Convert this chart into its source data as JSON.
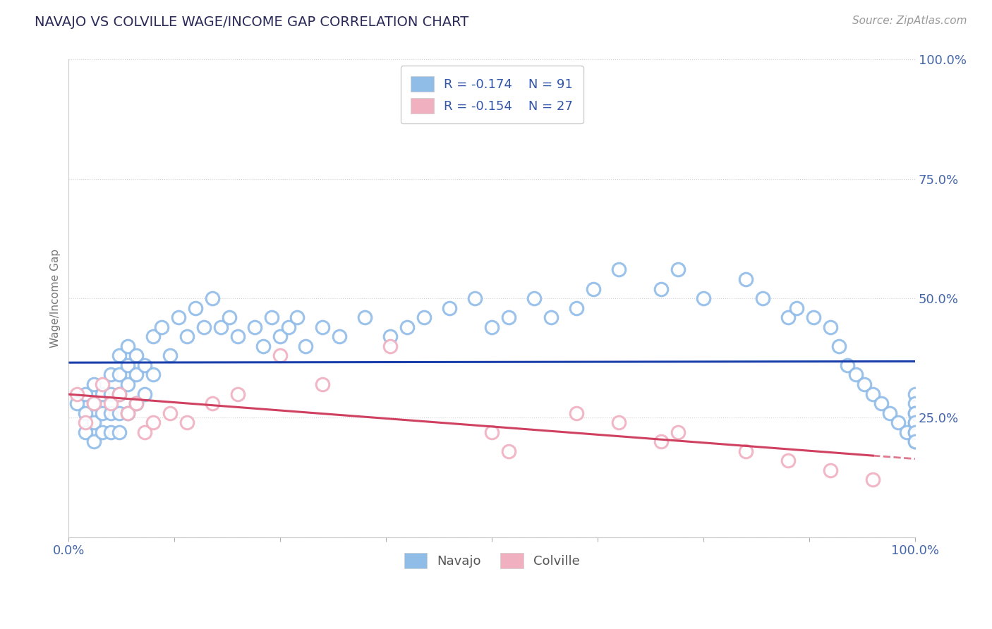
{
  "title": "NAVAJO VS COLVILLE WAGE/INCOME GAP CORRELATION CHART",
  "source": "Source: ZipAtlas.com",
  "ylabel": "Wage/Income Gap",
  "navajo_R": -0.174,
  "navajo_N": 91,
  "colville_R": -0.154,
  "colville_N": 27,
  "navajo_color": "#90bce8",
  "navajo_edge_color": "#7aaad8",
  "colville_color": "#f0b0c0",
  "colville_edge_color": "#e090a8",
  "navajo_line_color": "#1a3faa",
  "colville_line_color": "#d04060",
  "background_color": "#ffffff",
  "title_color": "#2a2a5a",
  "source_color": "#999999",
  "navajo_x": [
    0.01,
    0.02,
    0.02,
    0.02,
    0.03,
    0.03,
    0.03,
    0.03,
    0.04,
    0.04,
    0.04,
    0.05,
    0.05,
    0.05,
    0.05,
    0.06,
    0.06,
    0.06,
    0.06,
    0.06,
    0.07,
    0.07,
    0.07,
    0.07,
    0.08,
    0.08,
    0.08,
    0.09,
    0.09,
    0.1,
    0.1,
    0.11,
    0.12,
    0.13,
    0.14,
    0.15,
    0.16,
    0.17,
    0.18,
    0.19,
    0.2,
    0.22,
    0.23,
    0.24,
    0.25,
    0.26,
    0.27,
    0.28,
    0.3,
    0.32,
    0.35,
    0.38,
    0.4,
    0.42,
    0.45,
    0.48,
    0.5,
    0.52,
    0.55,
    0.57,
    0.6,
    0.62,
    0.65,
    0.7,
    0.72,
    0.75,
    0.8,
    0.82,
    0.85,
    0.86,
    0.88,
    0.9,
    0.91,
    0.92,
    0.93,
    0.94,
    0.95,
    0.96,
    0.97,
    0.98,
    0.99,
    1.0,
    1.0,
    1.0,
    1.0,
    1.0,
    1.0,
    1.0,
    1.0,
    1.0,
    1.0
  ],
  "navajo_y": [
    0.28,
    0.3,
    0.26,
    0.22,
    0.32,
    0.28,
    0.24,
    0.2,
    0.3,
    0.26,
    0.22,
    0.34,
    0.3,
    0.26,
    0.22,
    0.38,
    0.34,
    0.3,
    0.26,
    0.22,
    0.4,
    0.36,
    0.32,
    0.26,
    0.38,
    0.34,
    0.28,
    0.36,
    0.3,
    0.42,
    0.34,
    0.44,
    0.38,
    0.46,
    0.42,
    0.48,
    0.44,
    0.5,
    0.44,
    0.46,
    0.42,
    0.44,
    0.4,
    0.46,
    0.42,
    0.44,
    0.46,
    0.4,
    0.44,
    0.42,
    0.46,
    0.42,
    0.44,
    0.46,
    0.48,
    0.5,
    0.44,
    0.46,
    0.5,
    0.46,
    0.48,
    0.52,
    0.56,
    0.52,
    0.56,
    0.5,
    0.54,
    0.5,
    0.46,
    0.48,
    0.46,
    0.44,
    0.4,
    0.36,
    0.34,
    0.32,
    0.3,
    0.28,
    0.26,
    0.24,
    0.22,
    0.3,
    0.28,
    0.26,
    0.24,
    0.22,
    0.2,
    0.26,
    0.24,
    0.22,
    0.2
  ],
  "colville_x": [
    0.01,
    0.02,
    0.03,
    0.04,
    0.05,
    0.06,
    0.07,
    0.08,
    0.09,
    0.1,
    0.12,
    0.14,
    0.17,
    0.2,
    0.25,
    0.3,
    0.38,
    0.5,
    0.52,
    0.6,
    0.65,
    0.7,
    0.72,
    0.8,
    0.85,
    0.9,
    0.95
  ],
  "colville_y": [
    0.3,
    0.24,
    0.28,
    0.32,
    0.28,
    0.3,
    0.26,
    0.28,
    0.22,
    0.24,
    0.26,
    0.24,
    0.28,
    0.3,
    0.38,
    0.32,
    0.4,
    0.22,
    0.18,
    0.26,
    0.24,
    0.2,
    0.22,
    0.18,
    0.16,
    0.14,
    0.12
  ],
  "xtick_positions": [
    0.0,
    0.125,
    0.25,
    0.375,
    0.5,
    0.625,
    0.75,
    0.875,
    1.0
  ],
  "xtick_labels": [
    "0.0%",
    "",
    "",
    "",
    "",
    "",
    "",
    "",
    "100.0%"
  ],
  "ytick_positions": [
    0.0,
    0.25,
    0.5,
    0.75,
    1.0
  ],
  "ytick_labels": [
    "",
    "25.0%",
    "50.0%",
    "75.0%",
    "100.0%"
  ]
}
